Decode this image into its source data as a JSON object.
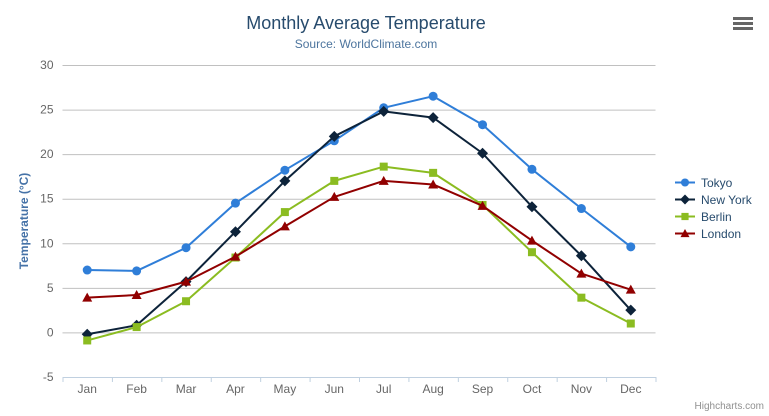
{
  "colors": {
    "background": "#ffffff",
    "title": "#274b6d",
    "subtitle": "#4d759e",
    "axis_label": "#666666",
    "y_axis_title": "#4572a7",
    "gridline": "#c0c0c0",
    "axis_line": "#c0d0e0",
    "hamburger_icon": "#666666",
    "credits": "#909090"
  },
  "icons": {
    "export_menu": "hamburger-icon"
  },
  "chart_data": {
    "type": "line",
    "title": "Monthly Average Temperature",
    "subtitle": "Source: WorldClimate.com",
    "xlabel": "",
    "ylabel": "Temperature (°C)",
    "categories": [
      "Jan",
      "Feb",
      "Mar",
      "Apr",
      "May",
      "Jun",
      "Jul",
      "Aug",
      "Sep",
      "Oct",
      "Nov",
      "Dec"
    ],
    "series": [
      {
        "name": "Tokyo",
        "color": "#2f7ed8",
        "marker": "circle",
        "values": [
          7.0,
          6.9,
          9.5,
          14.5,
          18.2,
          21.5,
          25.2,
          26.5,
          23.3,
          18.3,
          13.9,
          9.6
        ]
      },
      {
        "name": "New York",
        "color": "#0d233a",
        "marker": "diamond",
        "values": [
          -0.2,
          0.8,
          5.7,
          11.3,
          17.0,
          22.0,
          24.8,
          24.1,
          20.1,
          14.1,
          8.6,
          2.5
        ]
      },
      {
        "name": "Berlin",
        "color": "#8bbc21",
        "marker": "square",
        "values": [
          -0.9,
          0.6,
          3.5,
          8.4,
          13.5,
          17.0,
          18.6,
          17.9,
          14.3,
          9.0,
          3.9,
          1.0
        ]
      },
      {
        "name": "London",
        "color": "#910000",
        "marker": "triangle",
        "values": [
          3.9,
          4.2,
          5.7,
          8.5,
          11.9,
          15.2,
          17.0,
          16.6,
          14.2,
          10.3,
          6.6,
          4.8
        ]
      }
    ],
    "ylim": [
      -5,
      30
    ],
    "yticks": [
      -5,
      0,
      5,
      10,
      15,
      20,
      25,
      30
    ],
    "grid": true,
    "legend_position": "right",
    "credits": "Highcharts.com"
  }
}
